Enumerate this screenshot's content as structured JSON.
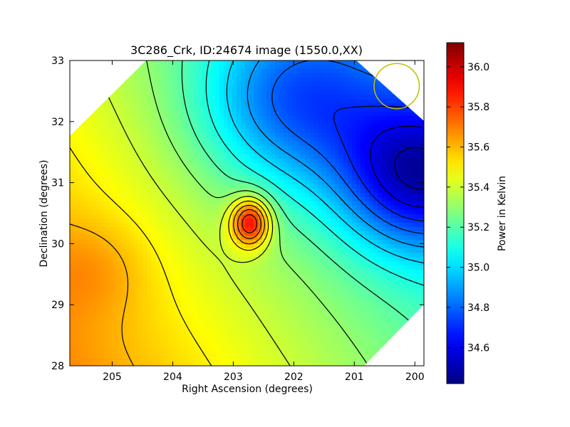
{
  "chart_data": {
    "type": "heatmap",
    "title": "3C286_Crk, ID:24674 image (1550.0,XX)",
    "xlabel": "Right Ascension (degrees)",
    "ylabel": "Declination (degrees)",
    "xlim": [
      205.7,
      199.85
    ],
    "ylim": [
      28,
      33
    ],
    "x_inverted": true,
    "xticks": [
      205,
      204,
      203,
      202,
      201,
      200
    ],
    "yticks": [
      28,
      29,
      30,
      31,
      32,
      33
    ],
    "colorbar": {
      "label": "Power in Kelvin",
      "colormap": "jet",
      "range": [
        34.42,
        36.12
      ],
      "ticks": [
        "34.6",
        "34.8",
        "35.0",
        "35.2",
        "35.4",
        "35.6",
        "35.8",
        "36.0"
      ]
    },
    "features": [
      {
        "name": "peak",
        "ra": 202.7,
        "dec": 30.35,
        "value": 36.1
      },
      {
        "name": "minimum",
        "ra": 199.95,
        "dec": 31.1,
        "value": 34.45
      }
    ],
    "beam_marker": {
      "ra": 200.3,
      "dec": 32.58,
      "color": "#bfbf00"
    },
    "grid": false
  }
}
